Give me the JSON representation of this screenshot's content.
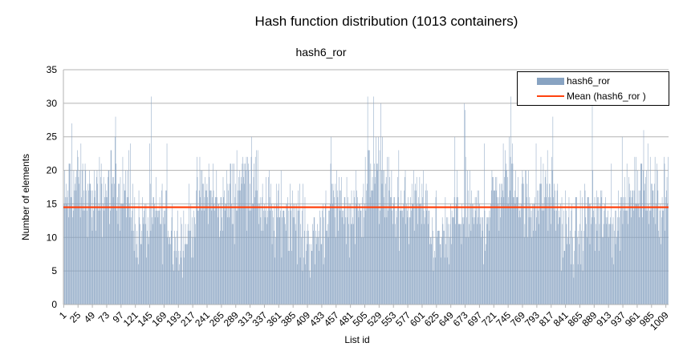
{
  "chart_data": {
    "type": "bar",
    "title": "Hash function distribution (1013 containers)",
    "subtitle": "hash6_ror",
    "xlabel": "List id",
    "ylabel": "Number of elements",
    "ylim": [
      0,
      35
    ],
    "yticks": [
      0,
      5,
      10,
      15,
      20,
      25,
      30,
      35
    ],
    "grid": true,
    "legend_position": "top-right",
    "x_count": 1013,
    "x_tick_labels": [
      "1",
      "25",
      "49",
      "73",
      "97",
      "121",
      "145",
      "169",
      "193",
      "217",
      "241",
      "265",
      "289",
      "313",
      "337",
      "361",
      "385",
      "409",
      "433",
      "457",
      "481",
      "505",
      "529",
      "553",
      "577",
      "601",
      "625",
      "649",
      "673",
      "697",
      "721",
      "745",
      "769",
      "793",
      "817",
      "841",
      "865",
      "889",
      "913",
      "937",
      "961",
      "985",
      "1009"
    ],
    "series": [
      {
        "name": "hash6_ror",
        "kind": "bar",
        "color": "#88a3c2"
      },
      {
        "name": "Mean (hash6_ror )",
        "kind": "line",
        "color": "#ff420e",
        "value": 14.5
      }
    ],
    "approx_peaks": {
      "max": 31,
      "min": 4,
      "typical_range": [
        7,
        24
      ]
    }
  }
}
